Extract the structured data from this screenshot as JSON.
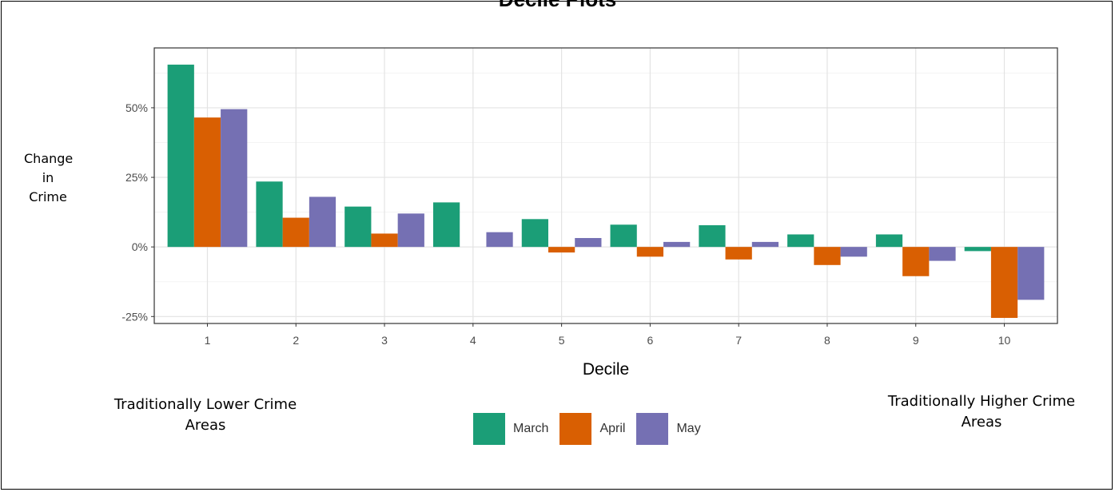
{
  "page": {
    "title": "Decile Plots"
  },
  "chart_data": {
    "type": "bar",
    "categories": [
      "1",
      "2",
      "3",
      "4",
      "5",
      "6",
      "7",
      "8",
      "9",
      "10"
    ],
    "series": [
      {
        "name": "March",
        "color": "#1B9E77",
        "values": [
          65.5,
          23.5,
          14.5,
          16.0,
          10.0,
          8.0,
          7.8,
          4.5,
          4.5,
          -1.5
        ]
      },
      {
        "name": "April",
        "color": "#D95F02",
        "values": [
          46.5,
          10.5,
          4.8,
          0.0,
          -2.0,
          -3.5,
          -4.5,
          -6.5,
          -10.5,
          -25.5
        ]
      },
      {
        "name": "May",
        "color": "#7570B3",
        "values": [
          49.5,
          18.0,
          12.0,
          5.3,
          3.2,
          1.8,
          1.8,
          -3.5,
          -5.0,
          -19.0
        ]
      }
    ],
    "xlabel": "Decile",
    "ylabel": [
      "Change",
      "in",
      "Crime"
    ],
    "ylim": [
      -27.5,
      71.5
    ],
    "yticks": [
      -25,
      0,
      25,
      50
    ],
    "yticklabels": [
      "-25%",
      "0%",
      "25%",
      "50%"
    ],
    "grid": true,
    "legend_position": "bottom"
  },
  "annotations": {
    "left": [
      "Traditionally Lower Crime",
      "Areas"
    ],
    "right": [
      "Traditionally Higher Crime",
      "Areas"
    ]
  }
}
